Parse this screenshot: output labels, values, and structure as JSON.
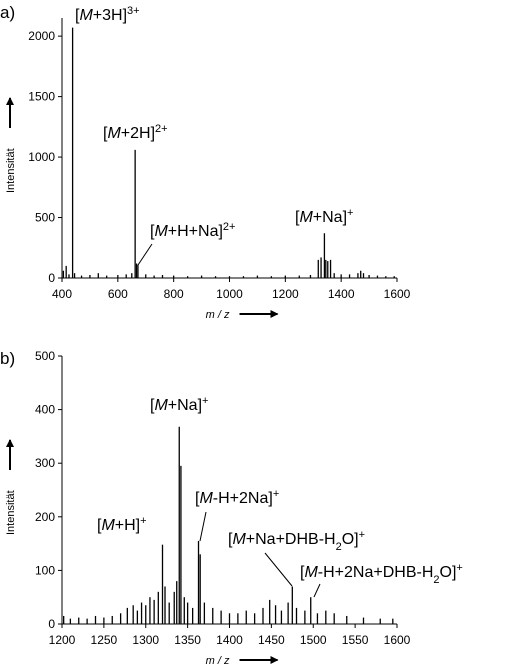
{
  "chart_data": [
    {
      "type": "stem",
      "panel_label": "a)",
      "xlabel": "m / z",
      "ylabel": "Intensität",
      "color": "#000000",
      "x": [
        405,
        415,
        425,
        438,
        445,
        470,
        500,
        530,
        560,
        600,
        630,
        650,
        662,
        667,
        672,
        700,
        730,
        760,
        800,
        850,
        900,
        950,
        1000,
        1050,
        1100,
        1150,
        1200,
        1250,
        1290,
        1318,
        1328,
        1340,
        1345,
        1352,
        1362,
        1375,
        1400,
        1430,
        1460,
        1470,
        1480,
        1500,
        1530,
        1560,
        1590
      ],
      "values": [
        60,
        100,
        30,
        2070,
        40,
        20,
        25,
        40,
        20,
        25,
        30,
        40,
        1060,
        120,
        110,
        30,
        20,
        25,
        20,
        15,
        20,
        15,
        15,
        15,
        20,
        15,
        20,
        20,
        25,
        150,
        170,
        370,
        150,
        140,
        150,
        40,
        30,
        30,
        40,
        60,
        40,
        25,
        20,
        15,
        15
      ],
      "xlim": [
        400,
        1600
      ],
      "xticks": [
        400,
        600,
        800,
        1000,
        1200,
        1400,
        1600
      ],
      "ylim": [
        0,
        2150
      ],
      "yticks": [
        0,
        500,
        1000,
        1500,
        2000
      ],
      "annotations": [
        [
          "[",
          {
            "text": "M",
            "style": "italic"
          },
          "+3H]",
          {
            "text": "3+",
            "style": "sup"
          }
        ],
        [
          "[",
          {
            "text": "M",
            "style": "italic"
          },
          "+2H]",
          {
            "text": "2+",
            "style": "sup"
          }
        ],
        [
          "[",
          {
            "text": "M",
            "style": "italic"
          },
          "+H+Na]",
          {
            "text": "2+",
            "style": "sup"
          }
        ],
        [
          "[",
          {
            "text": "M",
            "style": "italic"
          },
          "+Na]",
          {
            "text": "+",
            "style": "sup"
          }
        ]
      ]
    },
    {
      "type": "stem",
      "panel_label": "b)",
      "xlabel": "m / z",
      "ylabel": "Intensität",
      "color": "#000000",
      "x": [
        1202,
        1210,
        1220,
        1230,
        1240,
        1250,
        1260,
        1270,
        1278,
        1285,
        1290,
        1295,
        1300,
        1305,
        1310,
        1315,
        1320,
        1323,
        1328,
        1334,
        1337,
        1340,
        1342,
        1346,
        1350,
        1356,
        1363,
        1365,
        1370,
        1380,
        1390,
        1400,
        1410,
        1420,
        1430,
        1440,
        1448,
        1455,
        1462,
        1470,
        1475,
        1480,
        1490,
        1497,
        1505,
        1515,
        1525,
        1540,
        1560,
        1580,
        1595
      ],
      "values": [
        15,
        10,
        12,
        10,
        15,
        12,
        15,
        20,
        30,
        35,
        25,
        40,
        35,
        50,
        45,
        60,
        148,
        70,
        40,
        60,
        80,
        368,
        295,
        50,
        40,
        30,
        155,
        130,
        40,
        30,
        25,
        20,
        20,
        25,
        20,
        30,
        45,
        35,
        25,
        40,
        70,
        30,
        25,
        50,
        20,
        25,
        20,
        15,
        12,
        10,
        10
      ],
      "xlim": [
        1200,
        1600
      ],
      "xticks": [
        1200,
        1250,
        1300,
        1350,
        1400,
        1450,
        1500,
        1550,
        1600
      ],
      "ylim": [
        0,
        500
      ],
      "yticks": [
        0,
        100,
        200,
        300,
        400,
        500
      ],
      "annotations": [
        [
          "[",
          {
            "text": "M",
            "style": "italic"
          },
          "+Na]",
          {
            "text": "+",
            "style": "sup"
          }
        ],
        [
          "[",
          {
            "text": "M",
            "style": "italic"
          },
          "+H]",
          {
            "text": "+",
            "style": "sup"
          }
        ],
        [
          "[",
          {
            "text": "M",
            "style": "italic"
          },
          "-H+2Na]",
          {
            "text": "+",
            "style": "sup"
          }
        ],
        [
          "[",
          {
            "text": "M",
            "style": "italic"
          },
          "+Na+DHB-H",
          {
            "text": "2",
            "style": "sub"
          },
          "O]",
          {
            "text": "+",
            "style": "sup"
          }
        ],
        [
          "[",
          {
            "text": "M",
            "style": "italic"
          },
          "-H+2Na+DHB-H",
          {
            "text": "2",
            "style": "sub"
          },
          "O]",
          {
            "text": "+",
            "style": "sup"
          }
        ]
      ]
    }
  ]
}
